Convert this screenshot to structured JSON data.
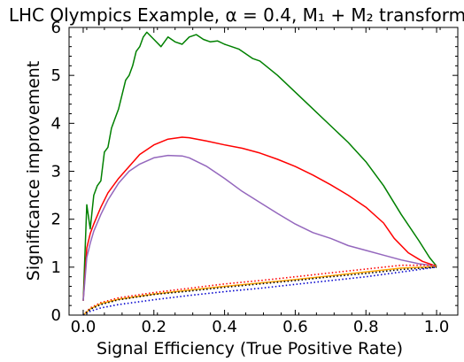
{
  "chart_data": {
    "type": "line",
    "title": "LHC Olympics Example, α = 0.4, M₁ + M₂ transform",
    "xlabel": "Signal Efficiency (True Positive Rate)",
    "ylabel": "Significance improvement",
    "xlim": [
      -0.04,
      1.06
    ],
    "ylim": [
      0,
      6
    ],
    "x_ticks": [
      0.0,
      0.2,
      0.4,
      0.6,
      0.8,
      1.0
    ],
    "x_tick_labels": [
      "0.0",
      "0.2",
      "0.4",
      "0.6",
      "0.8",
      "1.0"
    ],
    "y_ticks": [
      0,
      1,
      2,
      3,
      4,
      5,
      6
    ],
    "y_tick_labels": [
      "0",
      "1",
      "2",
      "3",
      "4",
      "5",
      "6"
    ],
    "grid": false,
    "legend": "none",
    "series": [
      {
        "color": "#008000",
        "style": "solid",
        "x": [
          0.0,
          0.01,
          0.02,
          0.03,
          0.04,
          0.05,
          0.06,
          0.07,
          0.08,
          0.09,
          0.1,
          0.11,
          0.12,
          0.13,
          0.14,
          0.15,
          0.16,
          0.17,
          0.18,
          0.2,
          0.22,
          0.24,
          0.26,
          0.28,
          0.3,
          0.32,
          0.34,
          0.36,
          0.38,
          0.4,
          0.42,
          0.44,
          0.46,
          0.48,
          0.5,
          0.55,
          0.6,
          0.65,
          0.7,
          0.75,
          0.8,
          0.85,
          0.9,
          0.95,
          0.98,
          1.0
        ],
        "y": [
          0.3,
          2.3,
          1.8,
          2.5,
          2.7,
          2.8,
          3.4,
          3.5,
          3.9,
          4.1,
          4.3,
          4.6,
          4.9,
          5.0,
          5.2,
          5.5,
          5.6,
          5.8,
          5.9,
          5.75,
          5.6,
          5.8,
          5.7,
          5.65,
          5.8,
          5.85,
          5.75,
          5.7,
          5.72,
          5.65,
          5.6,
          5.55,
          5.45,
          5.35,
          5.3,
          5.0,
          4.65,
          4.3,
          3.95,
          3.6,
          3.2,
          2.7,
          2.1,
          1.55,
          1.2,
          1.02
        ]
      },
      {
        "color": "#ff0000",
        "style": "solid",
        "x": [
          0.0,
          0.01,
          0.02,
          0.03,
          0.05,
          0.07,
          0.1,
          0.13,
          0.16,
          0.2,
          0.24,
          0.28,
          0.3,
          0.35,
          0.4,
          0.45,
          0.5,
          0.55,
          0.6,
          0.65,
          0.7,
          0.75,
          0.8,
          0.85,
          0.88,
          0.92,
          0.96,
          1.0
        ],
        "y": [
          0.3,
          1.4,
          1.7,
          1.9,
          2.25,
          2.55,
          2.85,
          3.1,
          3.35,
          3.55,
          3.67,
          3.71,
          3.7,
          3.63,
          3.55,
          3.48,
          3.38,
          3.25,
          3.1,
          2.92,
          2.72,
          2.5,
          2.25,
          1.92,
          1.6,
          1.3,
          1.12,
          1.02
        ]
      },
      {
        "color": "#9467bd",
        "style": "solid",
        "x": [
          0.0,
          0.01,
          0.02,
          0.03,
          0.05,
          0.07,
          0.1,
          0.13,
          0.16,
          0.2,
          0.24,
          0.28,
          0.3,
          0.35,
          0.4,
          0.45,
          0.5,
          0.55,
          0.6,
          0.65,
          0.7,
          0.75,
          0.8,
          0.85,
          0.9,
          0.95,
          1.0
        ],
        "y": [
          0.3,
          1.2,
          1.5,
          1.75,
          2.1,
          2.4,
          2.75,
          3.0,
          3.15,
          3.28,
          3.33,
          3.32,
          3.28,
          3.1,
          2.85,
          2.58,
          2.35,
          2.12,
          1.9,
          1.72,
          1.6,
          1.45,
          1.35,
          1.25,
          1.15,
          1.07,
          1.02
        ]
      },
      {
        "color": "#ff0000",
        "style": "dotted",
        "x": [
          0.0,
          0.02,
          0.05,
          0.1,
          0.2,
          0.3,
          0.4,
          0.5,
          0.6,
          0.7,
          0.8,
          0.9,
          1.0
        ],
        "y": [
          0.0,
          0.15,
          0.26,
          0.36,
          0.47,
          0.56,
          0.65,
          0.72,
          0.8,
          0.88,
          0.96,
          1.04,
          1.04
        ]
      },
      {
        "color": "#ffa500",
        "style": "solid",
        "x": [
          0.0,
          0.02,
          0.05,
          0.1,
          0.2,
          0.3,
          0.4,
          0.5,
          0.6,
          0.7,
          0.8,
          0.9,
          1.0
        ],
        "y": [
          0.0,
          0.13,
          0.24,
          0.33,
          0.44,
          0.52,
          0.6,
          0.67,
          0.74,
          0.82,
          0.9,
          0.98,
          1.01
        ]
      },
      {
        "color": "#000000",
        "style": "dotted",
        "x": [
          0.0,
          0.02,
          0.05,
          0.1,
          0.2,
          0.3,
          0.4,
          0.5,
          0.6,
          0.7,
          0.8,
          0.9,
          1.0
        ],
        "y": [
          0.0,
          0.12,
          0.22,
          0.32,
          0.43,
          0.5,
          0.58,
          0.65,
          0.72,
          0.8,
          0.87,
          0.95,
          1.0
        ]
      },
      {
        "color": "#0000cd",
        "style": "dotted",
        "x": [
          0.0,
          0.02,
          0.05,
          0.1,
          0.2,
          0.3,
          0.4,
          0.5,
          0.6,
          0.7,
          0.8,
          0.9,
          1.0
        ],
        "y": [
          0.0,
          0.08,
          0.15,
          0.22,
          0.32,
          0.41,
          0.49,
          0.56,
          0.64,
          0.72,
          0.8,
          0.9,
          1.0
        ]
      }
    ]
  }
}
